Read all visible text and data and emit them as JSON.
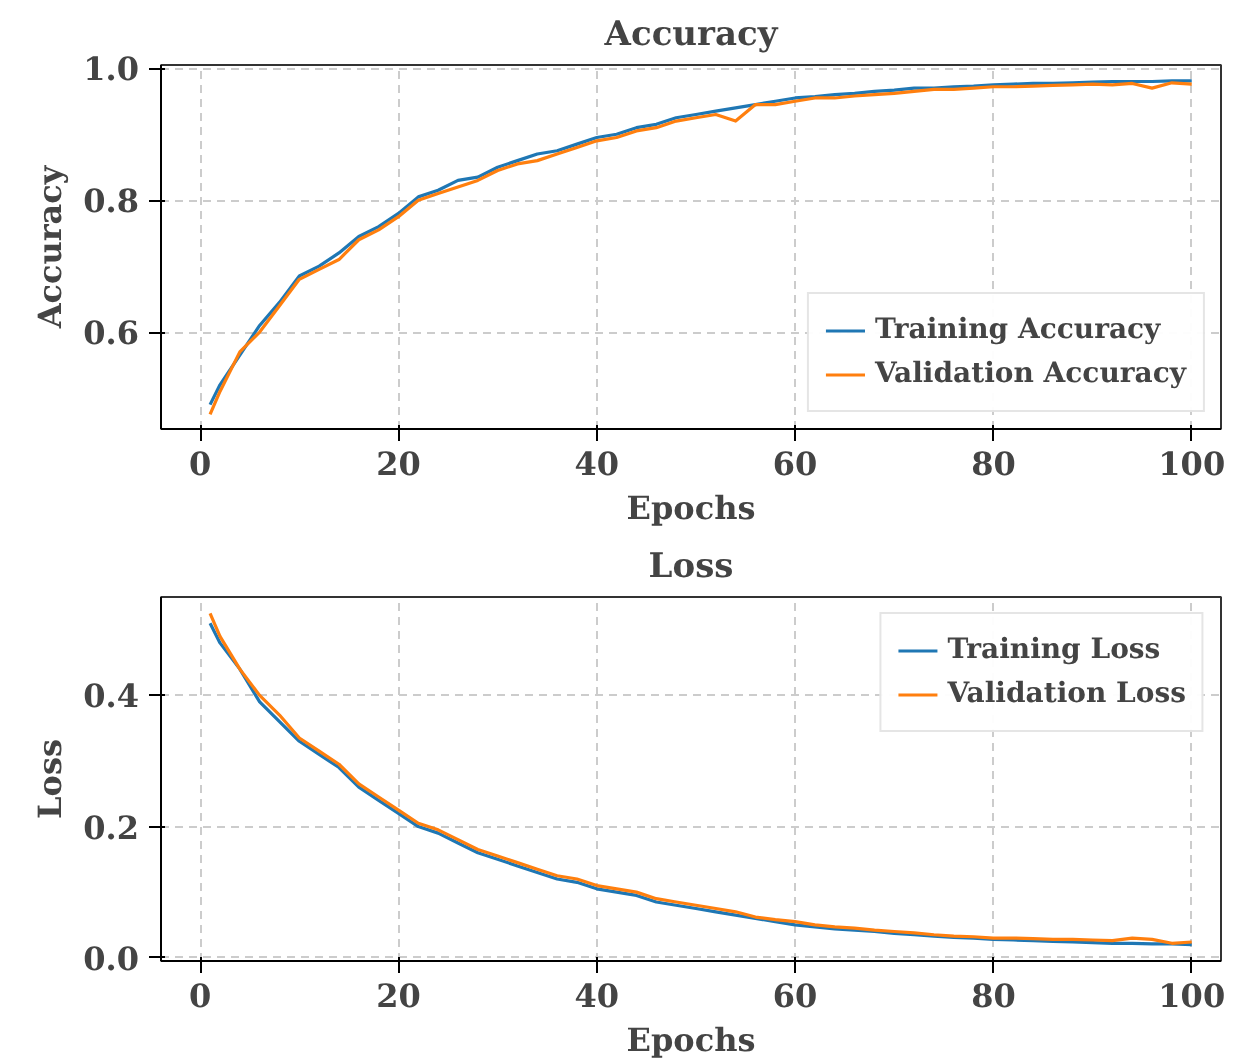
{
  "chart_data": [
    {
      "type": "line",
      "title": "Accuracy",
      "xlabel": "Epochs",
      "ylabel": "Accuracy",
      "x": [
        1,
        2,
        4,
        6,
        8,
        10,
        12,
        14,
        16,
        18,
        20,
        22,
        24,
        26,
        28,
        30,
        32,
        34,
        36,
        38,
        40,
        42,
        44,
        46,
        48,
        50,
        52,
        54,
        56,
        58,
        60,
        62,
        64,
        66,
        68,
        70,
        72,
        74,
        76,
        78,
        80,
        82,
        84,
        86,
        88,
        90,
        92,
        94,
        96,
        98,
        100
      ],
      "series": [
        {
          "name": "Training Accuracy",
          "color": "#1f77b4",
          "values": [
            0.49,
            0.52,
            0.565,
            0.61,
            0.645,
            0.685,
            0.7,
            0.72,
            0.745,
            0.76,
            0.78,
            0.805,
            0.815,
            0.83,
            0.835,
            0.85,
            0.86,
            0.87,
            0.875,
            0.885,
            0.895,
            0.9,
            0.91,
            0.915,
            0.925,
            0.93,
            0.935,
            0.94,
            0.945,
            0.95,
            0.955,
            0.957,
            0.96,
            0.962,
            0.965,
            0.967,
            0.97,
            0.97,
            0.972,
            0.973,
            0.975,
            0.976,
            0.977,
            0.977,
            0.978,
            0.979,
            0.98,
            0.98,
            0.98,
            0.981,
            0.981
          ]
        },
        {
          "name": "Validation Accuracy",
          "color": "#ff7f0e",
          "values": [
            0.475,
            0.51,
            0.57,
            0.6,
            0.64,
            0.68,
            0.695,
            0.71,
            0.74,
            0.755,
            0.775,
            0.8,
            0.81,
            0.82,
            0.83,
            0.845,
            0.855,
            0.86,
            0.87,
            0.88,
            0.89,
            0.895,
            0.905,
            0.91,
            0.92,
            0.925,
            0.93,
            0.92,
            0.945,
            0.945,
            0.95,
            0.955,
            0.955,
            0.958,
            0.96,
            0.962,
            0.965,
            0.968,
            0.968,
            0.97,
            0.972,
            0.972,
            0.973,
            0.974,
            0.975,
            0.976,
            0.975,
            0.977,
            0.97,
            0.978,
            0.976
          ]
        }
      ],
      "xlim": [
        -3.95,
        102.95
      ],
      "ylim": [
        0.453,
        1.005
      ],
      "xticks": [
        0,
        20,
        40,
        60,
        80,
        100
      ],
      "yticks": [
        {
          "value": 0.6,
          "label": "0.6"
        },
        {
          "value": 0.8,
          "label": "0.8"
        },
        {
          "value": 1.0,
          "label": "1.0"
        }
      ],
      "grid": true,
      "legend": "bottom right",
      "line_style": "solid"
    },
    {
      "type": "line",
      "title": "Loss",
      "xlabel": "Epochs",
      "ylabel": "Loss",
      "x": [
        1,
        2,
        4,
        6,
        8,
        10,
        12,
        14,
        16,
        18,
        20,
        22,
        24,
        26,
        28,
        30,
        32,
        34,
        36,
        38,
        40,
        42,
        44,
        46,
        48,
        50,
        52,
        54,
        56,
        58,
        60,
        62,
        64,
        66,
        68,
        70,
        72,
        74,
        76,
        78,
        80,
        82,
        84,
        86,
        88,
        90,
        92,
        94,
        96,
        98,
        100
      ],
      "series": [
        {
          "name": "Training Loss",
          "color": "#1f77b4",
          "values": [
            0.51,
            0.48,
            0.44,
            0.39,
            0.36,
            0.33,
            0.31,
            0.29,
            0.26,
            0.24,
            0.22,
            0.2,
            0.19,
            0.175,
            0.16,
            0.15,
            0.14,
            0.13,
            0.12,
            0.115,
            0.105,
            0.1,
            0.095,
            0.085,
            0.08,
            0.075,
            0.07,
            0.065,
            0.06,
            0.055,
            0.05,
            0.047,
            0.044,
            0.042,
            0.04,
            0.037,
            0.035,
            0.033,
            0.031,
            0.03,
            0.028,
            0.027,
            0.026,
            0.025,
            0.024,
            0.023,
            0.022,
            0.022,
            0.021,
            0.021,
            0.02
          ]
        },
        {
          "name": "Validation Loss",
          "color": "#ff7f0e",
          "values": [
            0.525,
            0.49,
            0.44,
            0.4,
            0.37,
            0.335,
            0.315,
            0.295,
            0.265,
            0.245,
            0.225,
            0.205,
            0.195,
            0.18,
            0.165,
            0.155,
            0.145,
            0.135,
            0.125,
            0.12,
            0.11,
            0.105,
            0.1,
            0.09,
            0.085,
            0.08,
            0.075,
            0.07,
            0.062,
            0.058,
            0.055,
            0.05,
            0.047,
            0.045,
            0.042,
            0.04,
            0.038,
            0.035,
            0.033,
            0.032,
            0.03,
            0.03,
            0.029,
            0.028,
            0.028,
            0.027,
            0.026,
            0.03,
            0.028,
            0.022,
            0.024
          ]
        }
      ],
      "xlim": [
        -3.95,
        102.95
      ],
      "ylim": [
        -0.005,
        0.55
      ],
      "xticks": [
        0,
        20,
        40,
        60,
        80,
        100
      ],
      "yticks": [
        {
          "value": 0.0,
          "label": "0.0"
        },
        {
          "value": 0.2,
          "label": "0.2"
        },
        {
          "value": 0.4,
          "label": "0.4"
        }
      ],
      "grid": true,
      "legend": "top right",
      "line_style": "solid"
    }
  ]
}
